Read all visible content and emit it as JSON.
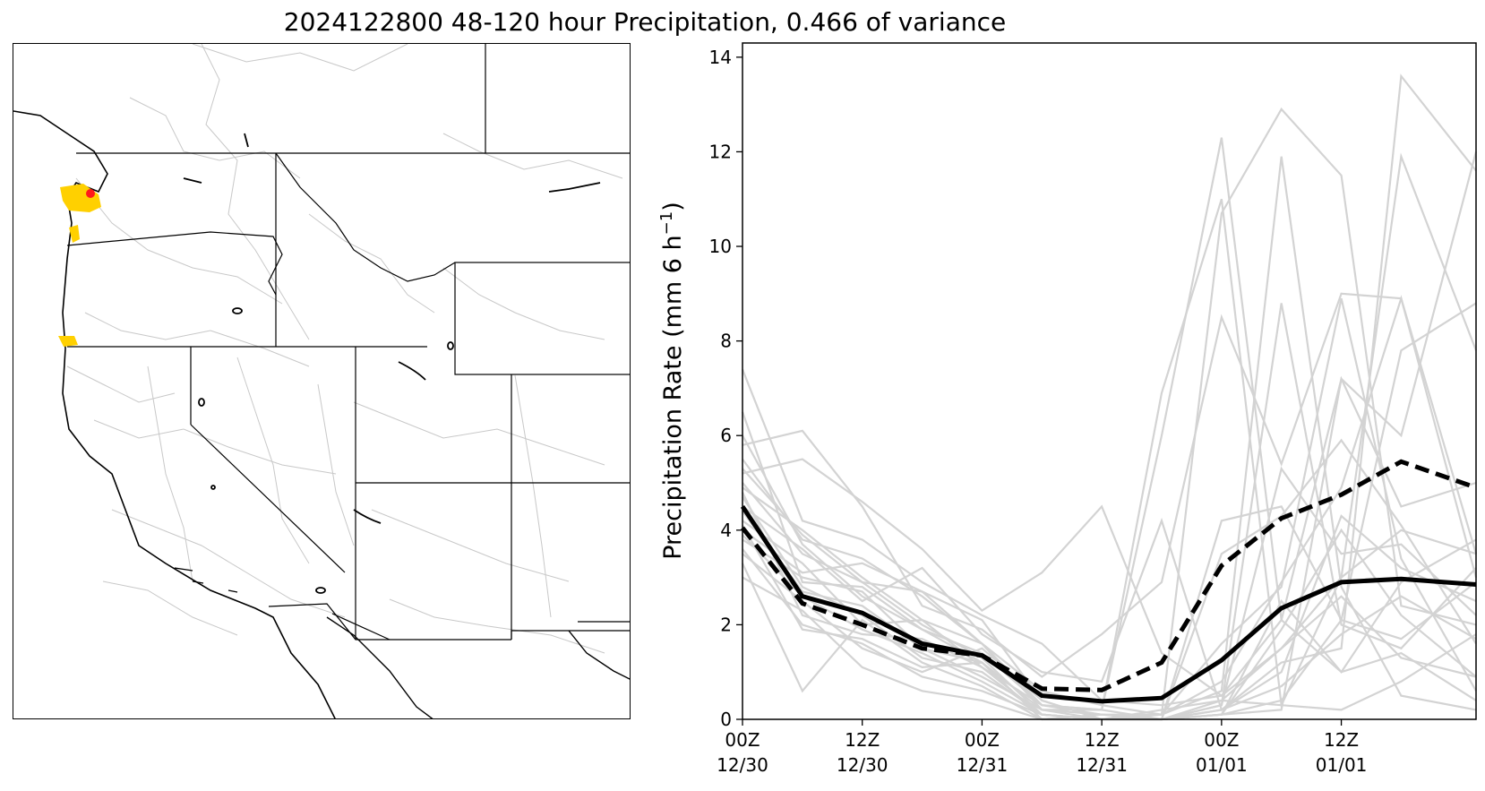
{
  "title": "2024122800 48-120 hour Precipitation, 0.466 of variance",
  "map": {
    "description_icon": "western-us-map",
    "highlight_colors": {
      "yellow": "#ffd000",
      "red": "#ff1a1a"
    }
  },
  "chart_data": {
    "type": "line",
    "ylabel_prefix": "Precipitation Rate (mm 6 h",
    "ylabel_sup": "−1",
    "ylabel_suffix": ")",
    "ylim": [
      0,
      14.3
    ],
    "xlim": [
      0,
      12.25
    ],
    "yticks": [
      0,
      2,
      4,
      6,
      8,
      10,
      12,
      14
    ],
    "xticks": [
      {
        "x": 0,
        "line1": "00Z",
        "line2": "12/30"
      },
      {
        "x": 2,
        "line1": "12Z",
        "line2": "12/30"
      },
      {
        "x": 4,
        "line1": "00Z",
        "line2": "12/31"
      },
      {
        "x": 6,
        "line1": "12Z",
        "line2": "12/31"
      },
      {
        "x": 8,
        "line1": "00Z",
        "line2": "01/01"
      },
      {
        "x": 10,
        "line1": "12Z",
        "line2": "01/01"
      }
    ],
    "grid": false,
    "colors": {
      "ensemble": "#d3d3d3",
      "mean": "#000000"
    },
    "x": [
      0,
      1,
      2,
      3,
      4,
      5,
      6,
      7,
      8,
      9,
      10,
      11,
      12.25
    ],
    "series": [
      {
        "style": "solid-bold",
        "values": [
          4.5,
          2.6,
          2.25,
          1.6,
          1.35,
          0.5,
          0.38,
          0.45,
          1.25,
          2.35,
          2.9,
          2.97,
          2.85
        ]
      },
      {
        "style": "dashed-bold",
        "values": [
          4.05,
          2.45,
          2.0,
          1.5,
          1.35,
          0.65,
          0.62,
          1.2,
          3.25,
          4.25,
          4.75,
          5.45,
          4.9
        ]
      }
    ],
    "ensemble": [
      [
        7.4,
        4.2,
        3.8,
        2.9,
        2.2,
        1.6,
        0.4,
        0.3,
        0.5,
        1.5,
        3.0,
        4.0,
        3.5
      ],
      [
        6.5,
        2.9,
        2.8,
        1.9,
        1.2,
        0.2,
        0.1,
        0.0,
        0.2,
        1.0,
        4.3,
        3.2,
        2.5
      ],
      [
        5.8,
        6.1,
        4.5,
        2.4,
        1.9,
        0.9,
        1.8,
        2.9,
        8.5,
        5.4,
        9.0,
        8.9,
        3.5
      ],
      [
        5.2,
        5.5,
        4.6,
        3.6,
        2.3,
        3.1,
        4.5,
        1.4,
        0.5,
        2.1,
        7.2,
        4.5,
        5.0
      ],
      [
        4.9,
        4.0,
        3.0,
        2.1,
        1.1,
        0.3,
        0.2,
        6.0,
        12.3,
        2.1,
        1.0,
        1.4,
        0.4
      ],
      [
        4.5,
        3.6,
        2.5,
        3.2,
        1.8,
        1.0,
        0.8,
        4.2,
        0.2,
        1.2,
        1.5,
        13.6,
        11.6
      ],
      [
        4.2,
        3.3,
        2.0,
        2.1,
        1.6,
        0.6,
        0.3,
        0.1,
        10.7,
        12.9,
        11.5,
        2.4,
        2.0
      ],
      [
        3.8,
        3.0,
        2.7,
        1.5,
        0.9,
        0.2,
        0.2,
        6.9,
        11.0,
        0.3,
        3.0,
        11.9,
        7.8
      ],
      [
        3.6,
        2.0,
        1.6,
        0.9,
        0.6,
        0.1,
        0.0,
        0.1,
        0.6,
        11.9,
        2.8,
        0.5,
        0.2
      ],
      [
        3.3,
        0.6,
        2.1,
        1.2,
        0.7,
        0.0,
        0.1,
        0.0,
        0.1,
        0.2,
        7.2,
        6.0,
        12.0
      ],
      [
        3.0,
        2.3,
        1.1,
        0.6,
        0.4,
        0.0,
        0.0,
        0.0,
        4.2,
        4.5,
        2.1,
        7.8,
        8.8
      ],
      [
        5.0,
        3.5,
        2.9,
        2.7,
        1.6,
        0.3,
        0.2,
        0.0,
        0.3,
        8.8,
        2.0,
        1.5,
        3.2
      ],
      [
        4.7,
        2.8,
        2.2,
        1.3,
        1.0,
        0.1,
        0.0,
        0.0,
        3.5,
        4.3,
        5.9,
        4.1,
        1.6
      ],
      [
        4.0,
        3.1,
        3.3,
        2.7,
        2.1,
        0.4,
        0.0,
        0.0,
        0.1,
        0.4,
        2.1,
        1.7,
        2.9
      ],
      [
        3.9,
        2.6,
        1.9,
        1.4,
        0.8,
        0.1,
        0.0,
        0.0,
        0.2,
        0.7,
        1.8,
        2.6,
        1.7
      ],
      [
        5.5,
        3.8,
        3.4,
        2.6,
        1.6,
        0.2,
        0.0,
        0.1,
        0.8,
        2.9,
        4.9,
        8.9,
        3.0
      ],
      [
        4.8,
        2.2,
        1.8,
        1.7,
        1.1,
        0.1,
        0.0,
        0.0,
        0.4,
        0.3,
        0.2,
        0.8,
        1.8
      ],
      [
        6.0,
        3.7,
        2.6,
        1.9,
        1.4,
        0.3,
        0.1,
        0.1,
        1.6,
        2.8,
        8.9,
        3.4,
        0.6
      ],
      [
        4.4,
        2.7,
        2.4,
        1.5,
        1.2,
        0.0,
        0.1,
        0.0,
        0.1,
        1.9,
        4.0,
        2.2,
        0.9
      ],
      [
        3.5,
        2.5,
        1.5,
        1.0,
        1.5,
        0.4,
        0.0,
        0.0,
        0.3,
        5.3,
        3.5,
        3.7,
        2.2
      ],
      [
        5.3,
        3.9,
        2.9,
        2.0,
        1.3,
        0.1,
        0.0,
        0.2,
        0.4,
        1.5,
        2.6,
        1.3,
        0.9
      ],
      [
        4.1,
        1.9,
        1.7,
        1.1,
        1.2,
        0.0,
        0.0,
        0.0,
        0.1,
        2.5,
        1.0,
        2.9,
        3.8
      ]
    ]
  }
}
